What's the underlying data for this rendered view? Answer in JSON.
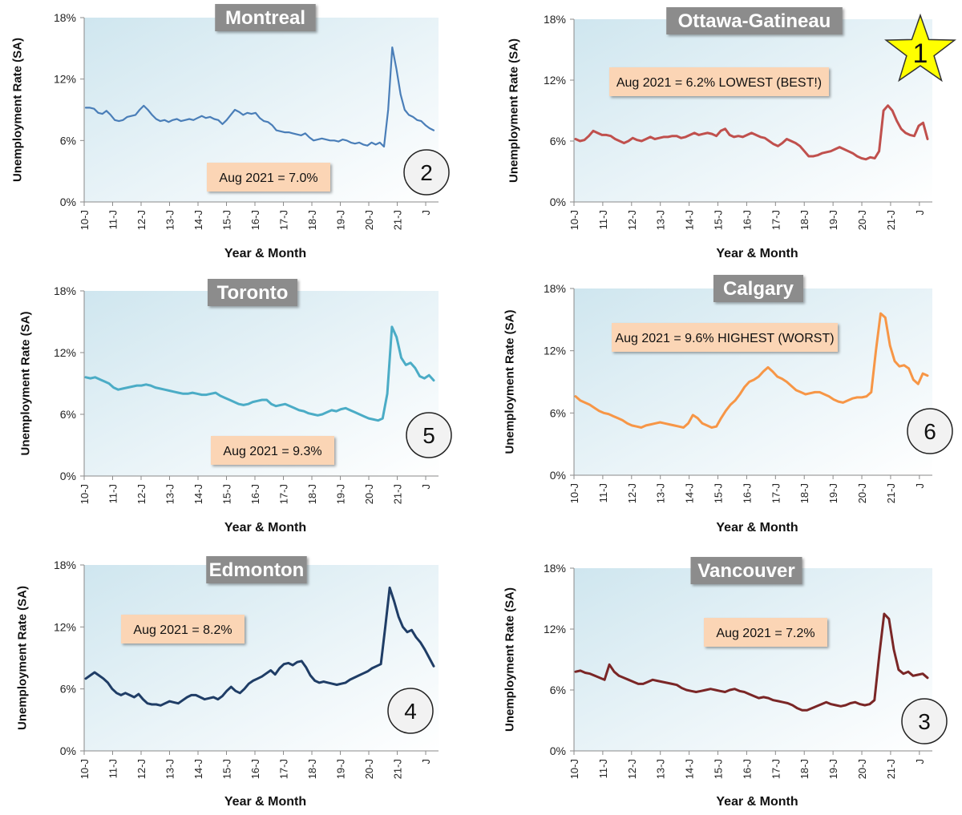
{
  "colors": {
    "plot_bg": "#eaf4f8",
    "axis": "#8a8a8a",
    "title_bg": "#8c8c8c",
    "note_bg": "#fbd5b5",
    "star_fill": "#ffff00"
  },
  "chart_data": [
    {
      "type": "line",
      "title": "Montreal",
      "ylabel": "Unemployment Rate (SA)",
      "xlabel": "Year & Month",
      "ylim": [
        0,
        18
      ],
      "yticks": [
        "0%",
        "6%",
        "12%",
        "18%"
      ],
      "xticks": [
        "10-J",
        "11-J",
        "12-J",
        "13-J",
        "14-J",
        "15-J",
        "16-J",
        "17-J",
        "18-J",
        "19-J",
        "20-J",
        "21-J",
        "J"
      ],
      "annotation": "Aug 2021 = 7.0%",
      "rank": "2",
      "color": "#4a7eb8",
      "series": [
        {
          "name": "Montreal",
          "values": [
            9.2,
            9.2,
            9.1,
            8.7,
            8.6,
            8.9,
            8.5,
            8.0,
            7.9,
            8.0,
            8.3,
            8.4,
            8.5,
            9.0,
            9.4,
            9.0,
            8.5,
            8.1,
            7.9,
            8.0,
            7.8,
            8.0,
            8.1,
            7.9,
            8.0,
            8.1,
            8.0,
            8.2,
            8.4,
            8.2,
            8.3,
            8.1,
            8.0,
            7.6,
            8.0,
            8.5,
            9.0,
            8.8,
            8.5,
            8.7,
            8.6,
            8.7,
            8.2,
            7.9,
            7.8,
            7.5,
            7.0,
            6.9,
            6.8,
            6.8,
            6.7,
            6.6,
            6.5,
            6.7,
            6.3,
            6.0,
            6.1,
            6.2,
            6.1,
            6.0,
            6.0,
            5.9,
            6.1,
            6.0,
            5.8,
            5.7,
            5.8,
            5.6,
            5.5,
            5.8,
            5.6,
            5.8,
            5.4,
            9.0,
            15.1,
            13.0,
            10.5,
            9.0,
            8.5,
            8.3,
            8.0,
            7.9,
            7.5,
            7.2,
            7.0
          ]
        }
      ]
    },
    {
      "type": "line",
      "title": "Ottawa-Gatineau",
      "ylabel": "Unemployment Rate (SA)",
      "xlabel": "Year & Month",
      "ylim": [
        0,
        18
      ],
      "yticks": [
        "0%",
        "6%",
        "12%",
        "18%"
      ],
      "xticks": [
        "10-J",
        "11-J",
        "12-J",
        "13-J",
        "14-J",
        "15-J",
        "16-J",
        "17-J",
        "18-J",
        "19-J",
        "20-J",
        "21-J",
        "J"
      ],
      "annotation": "Aug 2021 = 6.2% LOWEST (BEST!)",
      "rank": "1",
      "color": "#c0504d",
      "series": [
        {
          "name": "Ottawa-Gatineau",
          "values": [
            6.2,
            6.0,
            6.1,
            6.5,
            7.0,
            6.8,
            6.6,
            6.6,
            6.5,
            6.2,
            6.0,
            5.8,
            6.0,
            6.3,
            6.1,
            6.0,
            6.2,
            6.4,
            6.2,
            6.3,
            6.4,
            6.4,
            6.5,
            6.5,
            6.3,
            6.4,
            6.6,
            6.8,
            6.6,
            6.7,
            6.8,
            6.7,
            6.5,
            7.0,
            7.2,
            6.6,
            6.4,
            6.5,
            6.4,
            6.6,
            6.8,
            6.6,
            6.4,
            6.3,
            6.0,
            5.7,
            5.5,
            5.8,
            6.2,
            6.0,
            5.8,
            5.5,
            5.0,
            4.5,
            4.5,
            4.6,
            4.8,
            4.9,
            5.0,
            5.2,
            5.4,
            5.2,
            5.0,
            4.8,
            4.5,
            4.3,
            4.2,
            4.4,
            4.3,
            5.0,
            9.0,
            9.5,
            9.0,
            8.0,
            7.2,
            6.8,
            6.6,
            6.5,
            7.5,
            7.8,
            6.2
          ]
        }
      ]
    },
    {
      "type": "line",
      "title": "Toronto",
      "ylabel": "Unemployment Rate (SA)",
      "xlabel": "Year & Month",
      "ylim": [
        0,
        18
      ],
      "yticks": [
        "0%",
        "6%",
        "12%",
        "18%"
      ],
      "xticks": [
        "10-J",
        "11-J",
        "12-J",
        "13-J",
        "14-J",
        "15-J",
        "16-J",
        "17-J",
        "18-J",
        "19-J",
        "20-J",
        "21-J",
        "J"
      ],
      "annotation": "Aug 2021 = 9.3%",
      "rank": "5",
      "color": "#4bacc6",
      "series": [
        {
          "name": "Toronto",
          "values": [
            9.6,
            9.5,
            9.6,
            9.4,
            9.2,
            9.0,
            8.6,
            8.4,
            8.5,
            8.6,
            8.7,
            8.8,
            8.8,
            8.9,
            8.8,
            8.6,
            8.5,
            8.4,
            8.3,
            8.2,
            8.1,
            8.0,
            8.0,
            8.1,
            8.0,
            7.9,
            7.9,
            8.0,
            8.1,
            7.8,
            7.6,
            7.4,
            7.2,
            7.0,
            6.9,
            7.0,
            7.2,
            7.3,
            7.4,
            7.4,
            7.0,
            6.8,
            6.9,
            7.0,
            6.8,
            6.6,
            6.4,
            6.3,
            6.1,
            6.0,
            5.9,
            6.0,
            6.2,
            6.4,
            6.3,
            6.5,
            6.6,
            6.4,
            6.2,
            6.0,
            5.8,
            5.6,
            5.5,
            5.4,
            5.6,
            8.0,
            14.5,
            13.5,
            11.5,
            10.8,
            11.0,
            10.5,
            9.7,
            9.5,
            9.8,
            9.3
          ]
        }
      ]
    },
    {
      "type": "line",
      "title": "Calgary",
      "ylabel": "Unemployment Rate (SA)",
      "xlabel": "Year & Month",
      "ylim": [
        0,
        18
      ],
      "yticks": [
        "0%",
        "6%",
        "12%",
        "18%"
      ],
      "xticks": [
        "10-J",
        "11-J",
        "12-J",
        "13-J",
        "14-J",
        "15-J",
        "16-J",
        "17-J",
        "18-J",
        "19-J",
        "20-J",
        "21-J",
        "J"
      ],
      "annotation": "Aug 2021 = 9.6% HIGHEST (WORST)",
      "rank": "6",
      "color": "#f79646",
      "series": [
        {
          "name": "Calgary",
          "values": [
            7.6,
            7.2,
            7.0,
            6.8,
            6.5,
            6.2,
            6.0,
            5.9,
            5.7,
            5.5,
            5.3,
            5.0,
            4.8,
            4.7,
            4.6,
            4.8,
            4.9,
            5.0,
            5.1,
            5.0,
            4.9,
            4.8,
            4.7,
            4.6,
            5.0,
            5.8,
            5.5,
            5.0,
            4.8,
            4.6,
            4.7,
            5.5,
            6.2,
            6.8,
            7.2,
            7.8,
            8.5,
            9.0,
            9.2,
            9.5,
            10.0,
            10.4,
            10.0,
            9.5,
            9.3,
            9.0,
            8.6,
            8.2,
            8.0,
            7.8,
            7.9,
            8.0,
            8.0,
            7.8,
            7.6,
            7.3,
            7.1,
            7.0,
            7.2,
            7.4,
            7.5,
            7.5,
            7.6,
            8.0,
            12.0,
            15.6,
            15.2,
            12.5,
            11.0,
            10.5,
            10.6,
            10.3,
            9.2,
            8.8,
            9.8,
            9.6
          ]
        }
      ]
    },
    {
      "type": "line",
      "title": "Edmonton",
      "ylabel": "Unemployment Rate (SA)",
      "xlabel": "Year & Month",
      "ylim": [
        0,
        18
      ],
      "yticks": [
        "0%",
        "6%",
        "12%",
        "18%"
      ],
      "xticks": [
        "10-J",
        "11-J",
        "12-J",
        "13-J",
        "14-J",
        "15-J",
        "16-J",
        "17-J",
        "18-J",
        "19-J",
        "20-J",
        "21-J",
        "J"
      ],
      "annotation": "Aug 2021 = 8.2%",
      "rank": "4",
      "color": "#1f3d66",
      "series": [
        {
          "name": "Edmonton",
          "values": [
            7.0,
            7.3,
            7.6,
            7.3,
            7.0,
            6.6,
            6.0,
            5.6,
            5.4,
            5.6,
            5.4,
            5.2,
            5.5,
            5.0,
            4.6,
            4.5,
            4.5,
            4.4,
            4.6,
            4.8,
            4.7,
            4.6,
            4.9,
            5.2,
            5.4,
            5.4,
            5.2,
            5.0,
            5.1,
            5.2,
            5.0,
            5.3,
            5.8,
            6.2,
            5.8,
            5.6,
            6.0,
            6.5,
            6.8,
            7.0,
            7.2,
            7.5,
            7.8,
            7.4,
            8.0,
            8.4,
            8.5,
            8.3,
            8.6,
            8.7,
            8.1,
            7.3,
            6.8,
            6.6,
            6.7,
            6.6,
            6.5,
            6.4,
            6.5,
            6.6,
            6.9,
            7.1,
            7.3,
            7.5,
            7.7,
            8.0,
            8.2,
            8.4,
            12.0,
            15.8,
            14.5,
            13.0,
            12.0,
            11.5,
            11.7,
            11.0,
            10.5,
            9.8,
            9.0,
            8.2
          ]
        }
      ]
    },
    {
      "type": "line",
      "title": "Vancouver",
      "ylabel": "Unemployment Rate (SA)",
      "xlabel": "Year & Month",
      "ylim": [
        0,
        18
      ],
      "yticks": [
        "0%",
        "6%",
        "12%",
        "18%"
      ],
      "xticks": [
        "10-J",
        "11-J",
        "12-J",
        "13-J",
        "14-J",
        "15-J",
        "16-J",
        "17-J",
        "18-J",
        "19-J",
        "20-J",
        "21-J",
        "J"
      ],
      "annotation": "Aug 2021 = 7.2%",
      "rank": "3",
      "color": "#7a2626",
      "series": [
        {
          "name": "Vancouver",
          "values": [
            7.8,
            7.9,
            7.7,
            7.6,
            7.4,
            7.2,
            7.0,
            8.5,
            7.8,
            7.4,
            7.2,
            7.0,
            6.8,
            6.6,
            6.6,
            6.8,
            7.0,
            6.9,
            6.8,
            6.7,
            6.6,
            6.5,
            6.2,
            6.0,
            5.9,
            5.8,
            5.9,
            6.0,
            6.1,
            6.0,
            5.9,
            5.8,
            6.0,
            6.1,
            5.9,
            5.8,
            5.6,
            5.4,
            5.2,
            5.3,
            5.2,
            5.0,
            4.9,
            4.8,
            4.7,
            4.5,
            4.2,
            4.0,
            4.0,
            4.2,
            4.4,
            4.6,
            4.8,
            4.6,
            4.5,
            4.4,
            4.5,
            4.7,
            4.8,
            4.6,
            4.5,
            4.6,
            5.0,
            9.5,
            13.5,
            13.0,
            10.0,
            8.0,
            7.6,
            7.8,
            7.4,
            7.5,
            7.6,
            7.2
          ]
        }
      ]
    }
  ]
}
